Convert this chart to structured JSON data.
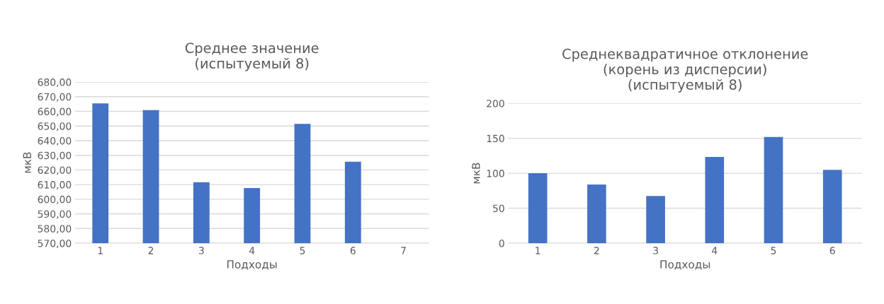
{
  "chart_data": [
    {
      "type": "bar",
      "title": "Среднее значение\n(испытуемый 8)",
      "xlabel": "Подходы",
      "ylabel": "мкВ",
      "categories": [
        "1",
        "2",
        "3",
        "4",
        "5",
        "6",
        "7"
      ],
      "series": [
        {
          "color": "#4472c4",
          "values": [
            665.4,
            660.9,
            611.6,
            607.7,
            651.4,
            625.6,
            null
          ]
        }
      ],
      "ylim": [
        570,
        680
      ],
      "yticks": [
        {
          "value": 570,
          "label": "570,00"
        },
        {
          "value": 580,
          "label": "580,00"
        },
        {
          "value": 590,
          "label": "590,00"
        },
        {
          "value": 600,
          "label": "600,00"
        },
        {
          "value": 610,
          "label": "610,00"
        },
        {
          "value": 620,
          "label": "620,00"
        },
        {
          "value": 630,
          "label": "630,00"
        },
        {
          "value": 640,
          "label": "640,00"
        },
        {
          "value": 650,
          "label": "650,00"
        },
        {
          "value": 660,
          "label": "660,00"
        },
        {
          "value": 670,
          "label": "670,00"
        },
        {
          "value": 680,
          "label": "680,00"
        }
      ],
      "grid": "y",
      "legend": false
    },
    {
      "type": "bar",
      "title": "Среднеквадратичное отклонение\n(корень из дисперсии)\n(испытуемый 8)",
      "xlabel": "Подходы",
      "ylabel": "мкВ",
      "categories": [
        "1",
        "2",
        "3",
        "4",
        "5",
        "6"
      ],
      "series": [
        {
          "color": "#4472c4",
          "values": [
            100,
            84,
            67.5,
            123.3,
            151.8,
            104.8
          ]
        }
      ],
      "ylim": [
        0,
        200
      ],
      "yticks": [
        0,
        50,
        100,
        150,
        200
      ],
      "grid": "y",
      "legend": false
    }
  ]
}
